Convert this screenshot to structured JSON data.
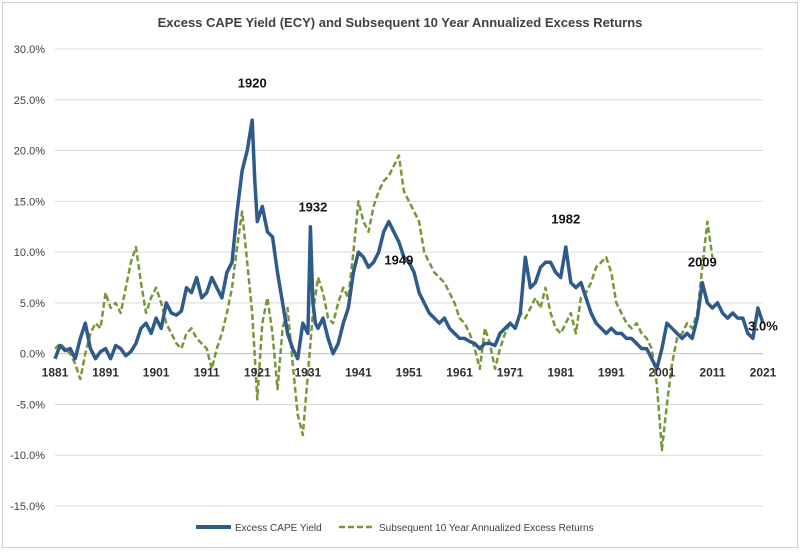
{
  "chart_data": {
    "type": "line",
    "title": "Excess CAPE Yield (ECY) and Subsequent 10 Year Annualized Excess Returns",
    "xlabel": "",
    "ylabel": "",
    "xlim": [
      1881,
      2021
    ],
    "ylim": [
      -15,
      30
    ],
    "y_ticks": [
      30,
      25,
      20,
      15,
      10,
      5,
      0,
      -5,
      -10,
      -15
    ],
    "y_tick_labels": [
      "30.0%",
      "25.0%",
      "20.0%",
      "15.0%",
      "10.0%",
      "5.0%",
      "0.0%",
      "-5.0%",
      "-10.0%",
      "-15.0%"
    ],
    "x_ticks": [
      1881,
      1891,
      1901,
      1911,
      1921,
      1931,
      1941,
      1951,
      1961,
      1971,
      1981,
      1991,
      2001,
      2011,
      2021
    ],
    "x_tick_labels": [
      "1881",
      "1891",
      "1901",
      "1911",
      "1921",
      "1931",
      "1941",
      "1951",
      "1961",
      "1971",
      "1981",
      "1991",
      "2001",
      "2011",
      "2021"
    ],
    "grid": true,
    "legend_position": "bottom",
    "series": [
      {
        "name": "Excess CAPE Yield",
        "color": "#2f5b8a",
        "style": "solid",
        "x": [
          1881,
          1882,
          1883,
          1884,
          1885,
          1886,
          1887,
          1888,
          1889,
          1890,
          1891,
          1892,
          1893,
          1894,
          1895,
          1896,
          1897,
          1898,
          1899,
          1900,
          1901,
          1902,
          1903,
          1904,
          1905,
          1906,
          1907,
          1908,
          1909,
          1910,
          1911,
          1912,
          1913,
          1914,
          1915,
          1916,
          1917,
          1918,
          1919,
          1920,
          1920.5,
          1921,
          1922,
          1923,
          1924,
          1925,
          1926,
          1927,
          1928,
          1929,
          1930,
          1931,
          1931.5,
          1932,
          1932.5,
          1933,
          1934,
          1935,
          1936,
          1937,
          1938,
          1939,
          1940,
          1941,
          1942,
          1943,
          1944,
          1945,
          1946,
          1947,
          1948,
          1949,
          1950,
          1951,
          1952,
          1953,
          1954,
          1955,
          1956,
          1957,
          1958,
          1959,
          1960,
          1961,
          1962,
          1963,
          1964,
          1965,
          1966,
          1967,
          1968,
          1969,
          1970,
          1971,
          1972,
          1973,
          1974,
          1975,
          1976,
          1977,
          1978,
          1979,
          1980,
          1981,
          1982,
          1983,
          1984,
          1985,
          1986,
          1987,
          1988,
          1989,
          1990,
          1991,
          1992,
          1993,
          1994,
          1995,
          1996,
          1997,
          1998,
          1999,
          2000,
          2001,
          2002,
          2003,
          2004,
          2005,
          2006,
          2007,
          2008,
          2009,
          2010,
          2011,
          2012,
          2013,
          2014,
          2015,
          2016,
          2017,
          2018,
          2019,
          2020,
          2021
        ],
        "values": [
          -0.5,
          0.8,
          0.3,
          0.5,
          -0.5,
          1.5,
          3.0,
          0.5,
          -0.5,
          0.2,
          0.5,
          -0.5,
          0.8,
          0.5,
          -0.2,
          0.2,
          1.0,
          2.5,
          3.0,
          2.0,
          3.5,
          2.5,
          5.0,
          4.0,
          3.8,
          4.2,
          6.5,
          6.0,
          7.5,
          5.5,
          6.0,
          7.5,
          6.5,
          5.5,
          8.0,
          9.0,
          14.0,
          18.0,
          20.0,
          23.0,
          17.0,
          13.0,
          14.5,
          12.0,
          11.5,
          8.0,
          5.0,
          2.0,
          0.5,
          -0.5,
          3.0,
          2.0,
          12.5,
          5.0,
          3.0,
          2.5,
          3.5,
          1.5,
          0.0,
          1.0,
          3.0,
          4.5,
          8.0,
          10.0,
          9.5,
          8.5,
          9.0,
          10.0,
          12.0,
          13.0,
          12.0,
          11.0,
          9.5,
          9.0,
          8.0,
          6.0,
          5.0,
          4.0,
          3.5,
          3.0,
          3.5,
          2.5,
          2.0,
          1.5,
          1.5,
          1.2,
          1.0,
          0.5,
          1.0,
          1.0,
          0.8,
          2.0,
          2.5,
          3.0,
          2.5,
          4.0,
          9.5,
          6.5,
          7.0,
          8.5,
          9.0,
          9.0,
          8.0,
          7.5,
          10.5,
          7.0,
          6.5,
          7.0,
          5.5,
          4.0,
          3.0,
          2.5,
          2.0,
          2.5,
          2.0,
          2.0,
          1.5,
          1.5,
          1.0,
          0.5,
          0.5,
          -0.5,
          -1.5,
          0.5,
          3.0,
          2.5,
          2.0,
          1.5,
          2.0,
          1.5,
          3.5,
          7.0,
          5.0,
          4.5,
          5.0,
          4.0,
          3.5,
          4.0,
          3.5,
          3.5,
          2.0,
          1.5,
          4.5,
          3.0
        ]
      },
      {
        "name": "Subsequent 10 Year Annualized Excess Returns",
        "color": "#79973a",
        "style": "dashed",
        "x": [
          1881,
          1882,
          1883,
          1884,
          1885,
          1886,
          1887,
          1888,
          1889,
          1890,
          1891,
          1892,
          1893,
          1894,
          1895,
          1896,
          1897,
          1898,
          1899,
          1900,
          1901,
          1902,
          1903,
          1904,
          1905,
          1906,
          1907,
          1908,
          1909,
          1910,
          1911,
          1912,
          1913,
          1914,
          1915,
          1916,
          1917,
          1918,
          1919,
          1920,
          1921,
          1922,
          1923,
          1924,
          1925,
          1926,
          1927,
          1928,
          1929,
          1930,
          1931,
          1932,
          1933,
          1934,
          1935,
          1936,
          1937,
          1938,
          1939,
          1940,
          1941,
          1942,
          1943,
          1944,
          1945,
          1946,
          1947,
          1948,
          1949,
          1950,
          1951,
          1952,
          1953,
          1954,
          1955,
          1956,
          1957,
          1958,
          1959,
          1960,
          1961,
          1962,
          1963,
          1964,
          1965,
          1966,
          1967,
          1968,
          1969,
          1970,
          1971,
          1972,
          1973,
          1974,
          1975,
          1976,
          1977,
          1978,
          1979,
          1980,
          1981,
          1982,
          1983,
          1984,
          1985,
          1986,
          1987,
          1988,
          1989,
          1990,
          1991,
          1992,
          1993,
          1994,
          1995,
          1996,
          1997,
          1998,
          1999,
          2000,
          2001,
          2002,
          2003,
          2004,
          2005,
          2006,
          2007,
          2008,
          2009,
          2010,
          2011
        ],
        "values": [
          0.5,
          1.0,
          0.5,
          0.0,
          -1.0,
          -2.5,
          0.0,
          2.0,
          3.0,
          2.5,
          6.0,
          4.5,
          5.0,
          4.0,
          6.5,
          9.0,
          10.5,
          7.0,
          4.0,
          5.5,
          6.5,
          5.0,
          3.0,
          2.0,
          1.0,
          0.5,
          2.0,
          2.5,
          1.5,
          1.0,
          0.5,
          -1.5,
          0.5,
          2.0,
          4.0,
          6.5,
          10.5,
          14.0,
          9.0,
          4.0,
          -4.5,
          3.0,
          5.5,
          2.0,
          -3.5,
          2.5,
          4.5,
          -1.0,
          -6.0,
          -8.0,
          -2.0,
          4.0,
          7.5,
          6.0,
          3.5,
          3.0,
          5.0,
          6.5,
          5.5,
          10.0,
          15.0,
          13.0,
          12.0,
          14.5,
          16.0,
          17.0,
          17.5,
          18.5,
          19.5,
          16.0,
          15.0,
          14.0,
          13.0,
          10.0,
          9.0,
          8.0,
          7.5,
          7.0,
          6.0,
          5.0,
          3.5,
          3.0,
          2.0,
          0.5,
          -1.5,
          2.5,
          1.0,
          -1.5,
          0.5,
          2.0,
          3.0,
          2.5,
          4.0,
          3.5,
          4.5,
          5.5,
          4.5,
          6.5,
          4.0,
          2.5,
          2.0,
          3.0,
          4.0,
          2.0,
          5.5,
          6.0,
          7.0,
          8.5,
          9.0,
          9.5,
          8.0,
          5.0,
          4.0,
          3.0,
          2.5,
          3.0,
          2.0,
          1.5,
          0.5,
          -3.0,
          -9.5,
          -5.0,
          -1.0,
          1.5,
          2.0,
          3.0,
          2.5,
          4.0,
          8.5,
          13.0,
          9.5
        ]
      }
    ],
    "annotations": [
      {
        "text": "1920",
        "x": 1920,
        "y": 26.2
      },
      {
        "text": "1932",
        "x": 1932,
        "y": 14.0
      },
      {
        "text": "1949",
        "x": 1949,
        "y": 8.8
      },
      {
        "text": "1982",
        "x": 1982,
        "y": 12.8
      },
      {
        "text": "2009",
        "x": 2009,
        "y": 8.6
      },
      {
        "text": "3.0%",
        "x": 2021,
        "y": 2.3
      }
    ]
  }
}
